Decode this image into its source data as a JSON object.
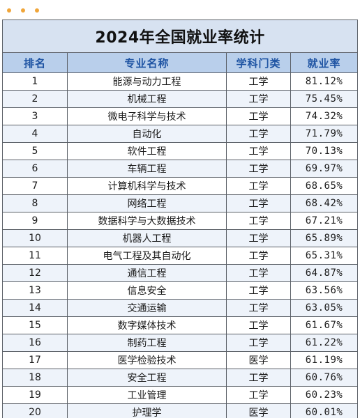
{
  "table": {
    "title": "2024年全国就业率统计",
    "headers": {
      "rank": "排名",
      "major": "专业名称",
      "category": "学科门类",
      "rate": "就业率"
    },
    "rows": [
      {
        "rank": "1",
        "major": "能源与动力工程",
        "category": "工学",
        "rate": "81.12%"
      },
      {
        "rank": "2",
        "major": "机械工程",
        "category": "工学",
        "rate": "75.45%"
      },
      {
        "rank": "3",
        "major": "微电子科学与技术",
        "category": "工学",
        "rate": "74.32%"
      },
      {
        "rank": "4",
        "major": "自动化",
        "category": "工学",
        "rate": "71.79%"
      },
      {
        "rank": "5",
        "major": "软件工程",
        "category": "工学",
        "rate": "70.13%"
      },
      {
        "rank": "6",
        "major": "车辆工程",
        "category": "工学",
        "rate": "69.97%"
      },
      {
        "rank": "7",
        "major": "计算机科学与技术",
        "category": "工学",
        "rate": "68.65%"
      },
      {
        "rank": "8",
        "major": "网络工程",
        "category": "工学",
        "rate": "68.42%"
      },
      {
        "rank": "9",
        "major": "数据科学与大数据技术",
        "category": "工学",
        "rate": "67.21%"
      },
      {
        "rank": "10",
        "major": "机器人工程",
        "category": "工学",
        "rate": "65.89%"
      },
      {
        "rank": "11",
        "major": "电气工程及其自动化",
        "category": "工学",
        "rate": "65.31%"
      },
      {
        "rank": "12",
        "major": "通信工程",
        "category": "工学",
        "rate": "64.87%"
      },
      {
        "rank": "13",
        "major": "信息安全",
        "category": "工学",
        "rate": "63.56%"
      },
      {
        "rank": "14",
        "major": "交通运输",
        "category": "工学",
        "rate": "63.05%"
      },
      {
        "rank": "15",
        "major": "数字媒体技术",
        "category": "工学",
        "rate": "61.67%"
      },
      {
        "rank": "16",
        "major": "制药工程",
        "category": "工学",
        "rate": "61.22%"
      },
      {
        "rank": "17",
        "major": "医学检验技术",
        "category": "医学",
        "rate": "61.19%"
      },
      {
        "rank": "18",
        "major": "安全工程",
        "category": "工学",
        "rate": "60.76%"
      },
      {
        "rank": "19",
        "major": "工业管理",
        "category": "工学",
        "rate": "60.23%"
      },
      {
        "rank": "20",
        "major": "护理学",
        "category": "医学",
        "rate": "60.01%"
      }
    ]
  },
  "colors": {
    "dots": "#f0a63a",
    "title_bg": "#d7e2f1",
    "header_bg": "#b9cfeb",
    "header_text": "#1f54a3"
  },
  "icons": {
    "menu": "three-dots-icon"
  }
}
